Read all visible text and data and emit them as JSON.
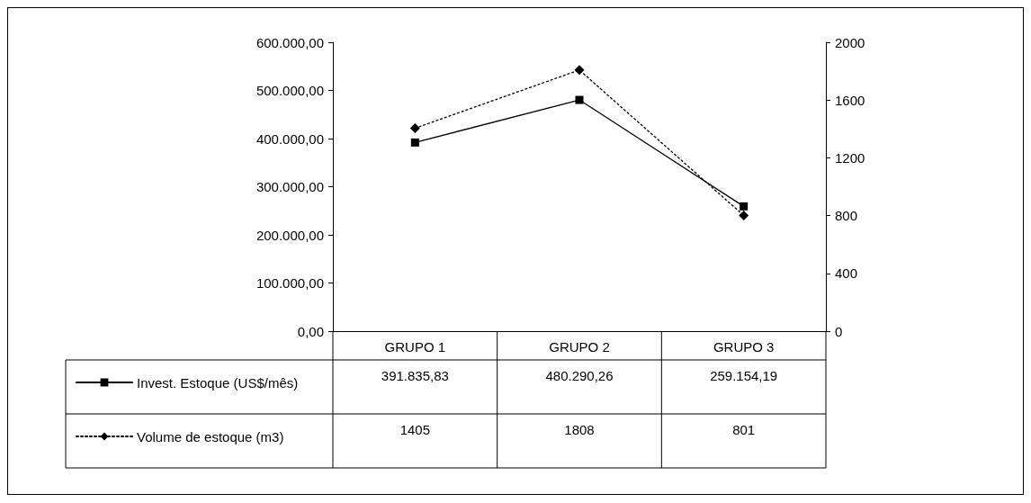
{
  "chart_data": {
    "type": "line",
    "categories": [
      "GRUPO 1",
      "GRUPO 2",
      "GRUPO 3"
    ],
    "series": [
      {
        "name": "Invest. Estoque (US$/mês)",
        "color": "#000000",
        "values": [
          391835.83,
          480290.26,
          259154.19
        ],
        "value_labels": [
          "391.835,83",
          "480.290,26",
          "259.154,19"
        ],
        "marker": "square",
        "line_style": "solid"
      },
      {
        "name": "Volume de estoque (m3)",
        "color": "#000000",
        "values": [
          1405,
          1808,
          801
        ],
        "value_labels": [
          "1405",
          "1808",
          "801"
        ],
        "marker": "diamond",
        "line_style": "dotted",
        "axis": "y2"
      }
    ],
    "ylim": [
      0,
      600000
    ],
    "yticks": [
      {
        "value": 0,
        "label": "0,00"
      },
      {
        "value": 100000,
        "label": "100.000,00"
      },
      {
        "value": 200000,
        "label": "200.000,00"
      },
      {
        "value": 300000,
        "label": "300.000,00"
      },
      {
        "value": 400000,
        "label": "400.000,00"
      },
      {
        "value": 500000,
        "label": "500.000,00"
      },
      {
        "value": 600000,
        "label": "600.000,00"
      }
    ],
    "y2lim": [
      0,
      2000
    ],
    "y2ticks": [
      0,
      400,
      800,
      1200,
      1600,
      2000
    ],
    "grid": false,
    "legend": "bottom left"
  }
}
